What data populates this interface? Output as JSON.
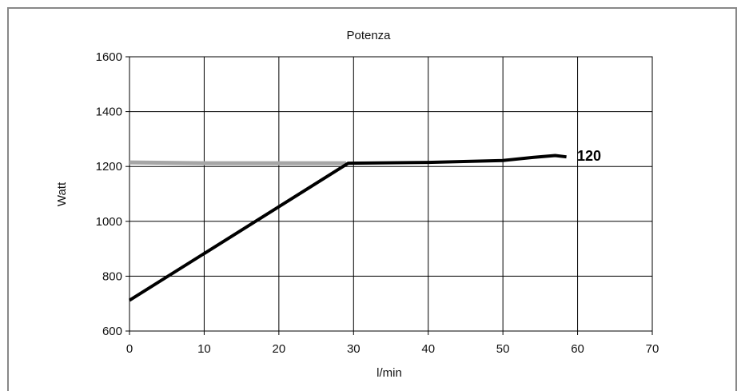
{
  "chart_data": {
    "type": "line",
    "title": "Potenza",
    "xlabel": "l/min",
    "ylabel": "Watt",
    "xlim": [
      0,
      70
    ],
    "ylim": [
      600,
      1600
    ],
    "xticks": [
      0,
      10,
      20,
      30,
      40,
      50,
      60,
      70
    ],
    "yticks": [
      600,
      800,
      1000,
      1200,
      1400,
      1600
    ],
    "xtick_labels": [
      "0",
      "10",
      "20",
      "30",
      "40",
      "50",
      "60",
      "70"
    ],
    "ytick_labels": [
      "600",
      "800",
      "1000",
      "1200",
      "1400",
      "1600"
    ],
    "grid": true,
    "series": [
      {
        "color": "#a6a6a6",
        "x": [
          0,
          10,
          20,
          29
        ],
        "y": [
          1215,
          1212,
          1212,
          1212
        ]
      },
      {
        "name": "120",
        "color": "#000000",
        "x": [
          0,
          29.3,
          40,
          50,
          54,
          57,
          58.5
        ],
        "y": [
          712,
          1212,
          1215,
          1222,
          1233,
          1240,
          1235
        ]
      }
    ]
  }
}
